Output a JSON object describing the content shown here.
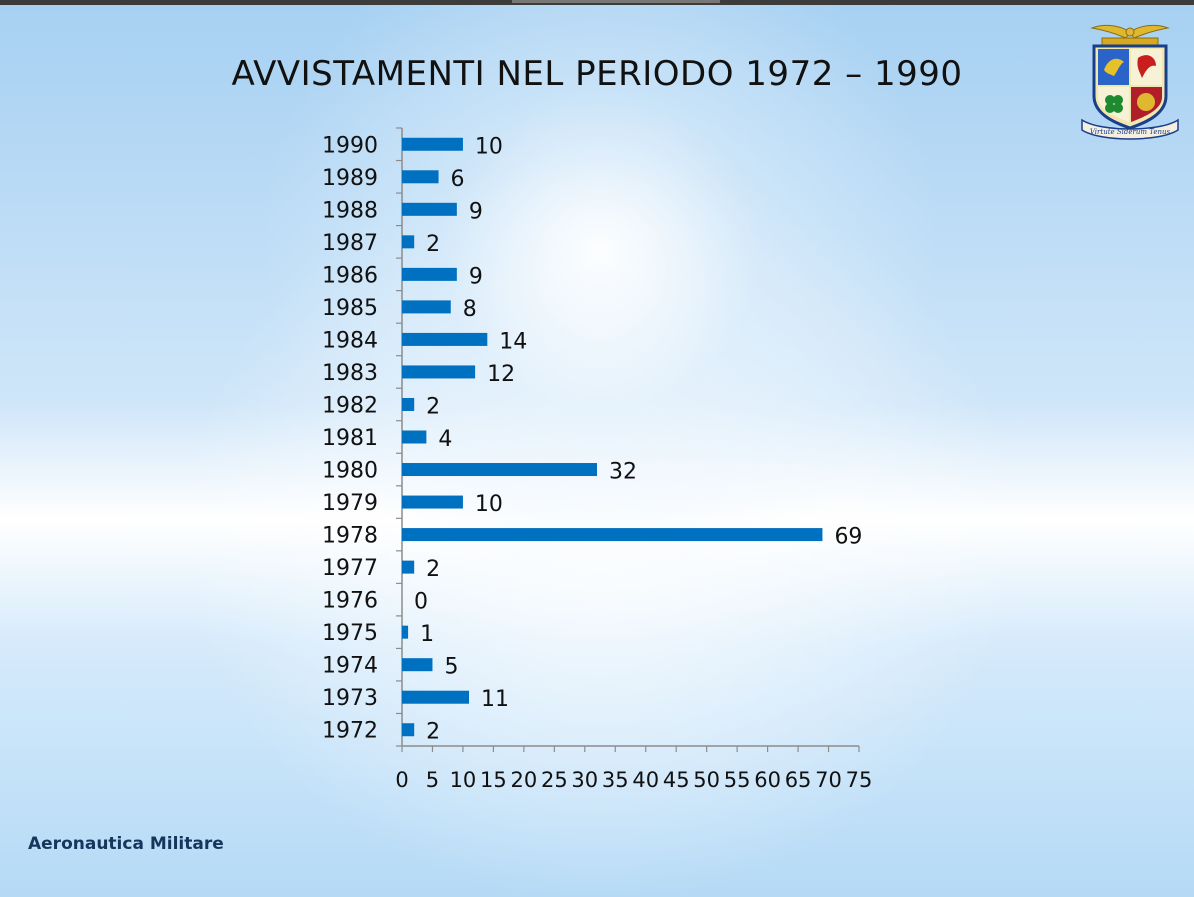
{
  "title": "AVVISTAMENTI NEL PERIODO 1972 – 1990",
  "footer": "Aeronautica Militare",
  "logo": {
    "motto": "Virtute Siderum Tenus",
    "icon": "air-force-coat-of-arms-icon"
  },
  "colors": {
    "bar": "#0070c0",
    "text": "#111111",
    "footer": "#17365d"
  },
  "chart_data": {
    "type": "bar",
    "orientation": "horizontal",
    "title": "AVVISTAMENTI NEL PERIODO 1972 – 1990",
    "categories": [
      "1990",
      "1989",
      "1988",
      "1987",
      "1986",
      "1985",
      "1984",
      "1983",
      "1982",
      "1981",
      "1980",
      "1979",
      "1978",
      "1977",
      "1976",
      "1975",
      "1974",
      "1973",
      "1972"
    ],
    "values": [
      10,
      6,
      9,
      2,
      9,
      8,
      14,
      12,
      2,
      4,
      32,
      10,
      69,
      2,
      0,
      1,
      5,
      11,
      2
    ],
    "xlim": [
      0,
      75
    ],
    "xticks": [
      0,
      5,
      10,
      15,
      20,
      25,
      30,
      35,
      40,
      45,
      50,
      55,
      60,
      65,
      70,
      75
    ],
    "xlabel": "",
    "ylabel": "",
    "grid": false,
    "legend": "none",
    "data_labels": true
  }
}
